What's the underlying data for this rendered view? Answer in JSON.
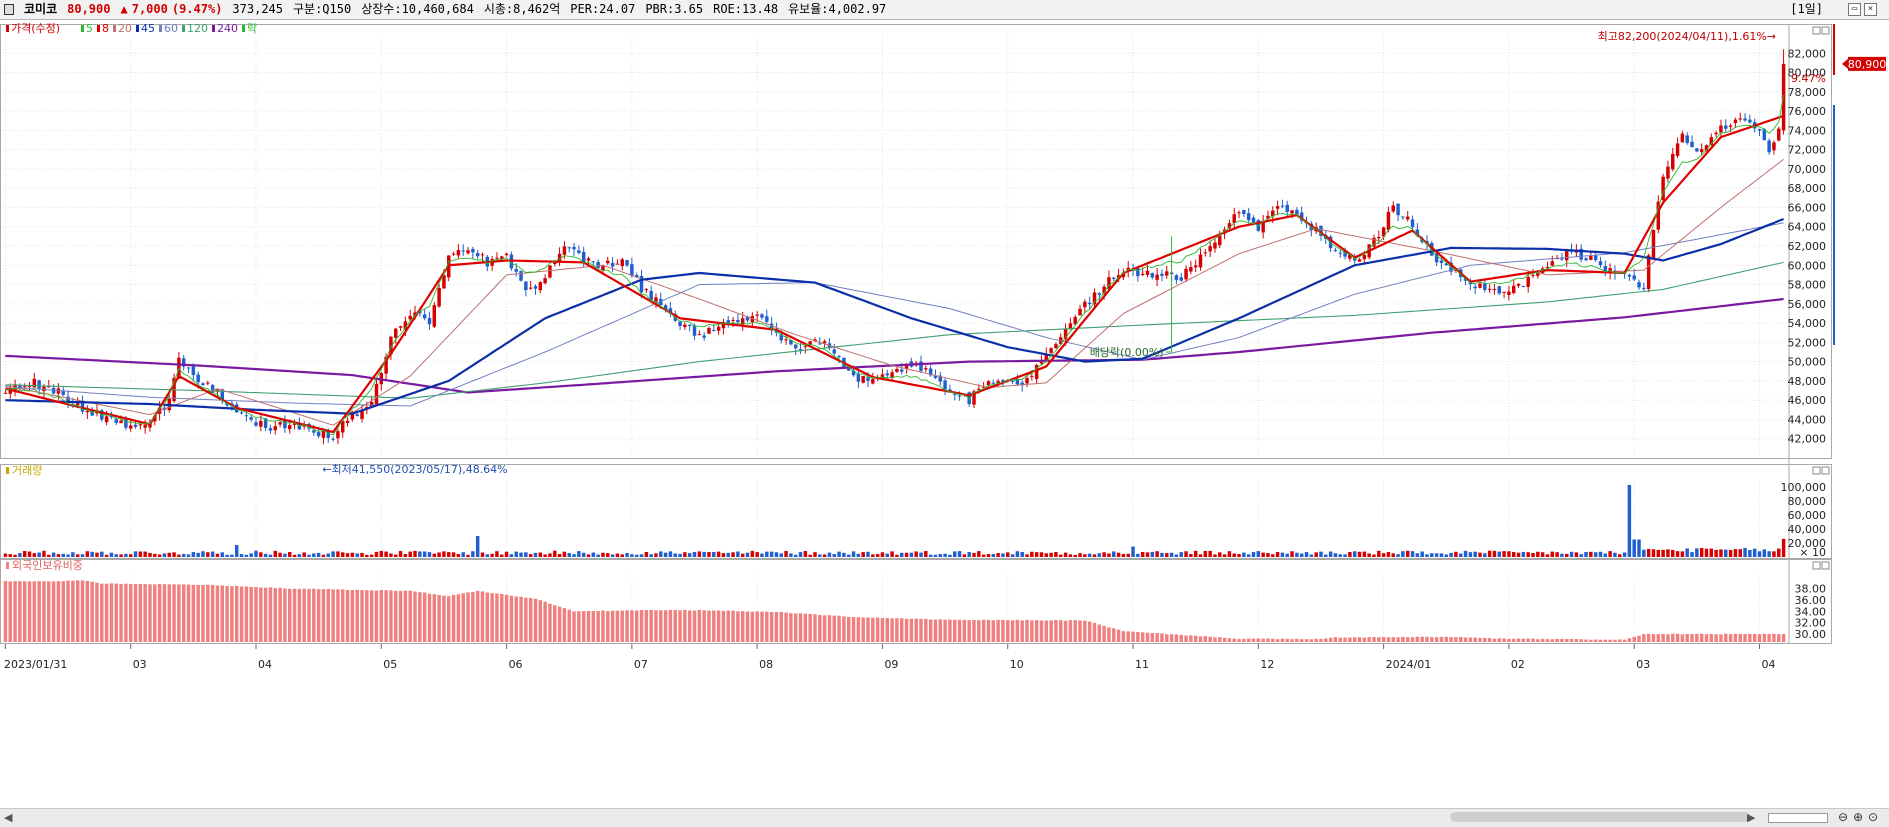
{
  "header": {
    "stock_name": "코미코",
    "price": "80,900",
    "change_arrow": "▲",
    "change": "7,000",
    "change_pct": "(9.47%)",
    "volume": "373,245",
    "market": "구분:Q150",
    "listed_shares": "상장수:10,460,684",
    "market_cap": "시총:8,462억",
    "per": "PER:24.07",
    "pbr": "PBR:3.65",
    "roe": "ROE:13.48",
    "liquidity": "유보율:4,002.97",
    "period": "[1일]"
  },
  "colors": {
    "up": "#d60000",
    "down": "#1f5fd0",
    "ma5": "#e00000",
    "ma20": "#c07070",
    "ma45": "#0a2fa8",
    "ma60": "#7080c0",
    "ma120": "#40a070",
    "ma240": "#7a1aa0",
    "foreign": "#f08080",
    "grid": "#e3e3e3"
  },
  "chart_data": [
    {
      "type": "candlestick",
      "title": "가격(수정)",
      "legend": [
        {
          "label": "가격(수정)",
          "color": "#d60000"
        },
        {
          "label": "5",
          "color": "#2bb82b"
        },
        {
          "label": "8",
          "color": "#e00000"
        },
        {
          "label": "20",
          "color": "#c07070"
        },
        {
          "label": "45",
          "color": "#0a2fa8"
        },
        {
          "label": "60",
          "color": "#7080c0"
        },
        {
          "label": "120",
          "color": "#40a070"
        },
        {
          "label": "240",
          "color": "#7a1aa0"
        },
        {
          "label": "락",
          "color": "#2bb82b"
        }
      ],
      "ylim": [
        40000,
        84000
      ],
      "y_ticks": [
        "82,000",
        "80,000",
        "78,000",
        "76,000",
        "74,000",
        "72,000",
        "70,000",
        "68,000",
        "66,000",
        "64,000",
        "62,000",
        "60,000",
        "58,000",
        "56,000",
        "54,000",
        "52,000",
        "50,000",
        "48,000",
        "46,000",
        "44,000",
        "42,000"
      ],
      "x_labels": [
        "2023/01/31",
        "03",
        "04",
        "05",
        "06",
        "07",
        "08",
        "09",
        "10",
        "11",
        "12",
        "2024/01",
        "02",
        "03",
        "04"
      ],
      "close_path": [
        [
          0,
          47000
        ],
        [
          6,
          47800
        ],
        [
          12,
          46600
        ],
        [
          16,
          44900
        ],
        [
          22,
          44200
        ],
        [
          26,
          43100
        ],
        [
          30,
          43600
        ],
        [
          34,
          46000
        ],
        [
          36,
          50000
        ],
        [
          40,
          48000
        ],
        [
          44,
          46700
        ],
        [
          48,
          45000
        ],
        [
          52,
          43600
        ],
        [
          56,
          43400
        ],
        [
          60,
          43600
        ],
        [
          64,
          42800
        ],
        [
          68,
          42400
        ],
        [
          72,
          44500
        ],
        [
          76,
          45600
        ],
        [
          80,
          52500
        ],
        [
          84,
          55000
        ],
        [
          88,
          54300
        ],
        [
          92,
          61000
        ],
        [
          96,
          61500
        ],
        [
          100,
          60300
        ],
        [
          104,
          61000
        ],
        [
          108,
          57000
        ],
        [
          112,
          59000
        ],
        [
          116,
          62000
        ],
        [
          120,
          60500
        ],
        [
          124,
          59800
        ],
        [
          128,
          60800
        ],
        [
          132,
          57600
        ],
        [
          136,
          56000
        ],
        [
          140,
          54000
        ],
        [
          144,
          52800
        ],
        [
          148,
          53600
        ],
        [
          152,
          54000
        ],
        [
          156,
          55000
        ],
        [
          160,
          53000
        ],
        [
          164,
          51500
        ],
        [
          168,
          52400
        ],
        [
          172,
          50800
        ],
        [
          176,
          48300
        ],
        [
          180,
          48000
        ],
        [
          184,
          48500
        ],
        [
          188,
          49800
        ],
        [
          192,
          48600
        ],
        [
          196,
          47200
        ],
        [
          200,
          46000
        ],
        [
          204,
          48200
        ],
        [
          208,
          47800
        ],
        [
          212,
          48000
        ],
        [
          216,
          51000
        ],
        [
          220,
          53500
        ],
        [
          224,
          56000
        ],
        [
          228,
          58000
        ],
        [
          232,
          59500
        ],
        [
          236,
          59000
        ],
        [
          240,
          59200
        ],
        [
          244,
          58600
        ],
        [
          248,
          61000
        ],
        [
          252,
          63000
        ],
        [
          256,
          65500
        ],
        [
          260,
          64000
        ],
        [
          264,
          66500
        ],
        [
          268,
          65000
        ],
        [
          272,
          63500
        ],
        [
          276,
          61800
        ],
        [
          280,
          60500
        ],
        [
          284,
          62500
        ],
        [
          288,
          66000
        ],
        [
          292,
          64200
        ],
        [
          296,
          61000
        ],
        [
          300,
          59500
        ],
        [
          304,
          58000
        ],
        [
          308,
          57800
        ],
        [
          312,
          57200
        ],
        [
          316,
          58600
        ],
        [
          320,
          59800
        ],
        [
          324,
          61400
        ],
        [
          328,
          60800
        ],
        [
          332,
          59800
        ],
        [
          336,
          59200
        ],
        [
          340,
          57800
        ],
        [
          344,
          69000
        ],
        [
          348,
          73500
        ],
        [
          352,
          71800
        ],
        [
          356,
          74500
        ],
        [
          360,
          74800
        ],
        [
          364,
          74200
        ],
        [
          366,
          71600
        ],
        [
          368,
          73900
        ],
        [
          369,
          80900
        ]
      ],
      "num_bars": 370,
      "ma5": [
        [
          0,
          47200
        ],
        [
          16,
          45200
        ],
        [
          30,
          43500
        ],
        [
          36,
          48500
        ],
        [
          48,
          45200
        ],
        [
          68,
          42700
        ],
        [
          80,
          50800
        ],
        [
          92,
          60000
        ],
        [
          104,
          60500
        ],
        [
          120,
          60300
        ],
        [
          140,
          54500
        ],
        [
          160,
          53300
        ],
        [
          180,
          48400
        ],
        [
          200,
          46500
        ],
        [
          216,
          49500
        ],
        [
          232,
          59200
        ],
        [
          256,
          64000
        ],
        [
          268,
          65200
        ],
        [
          280,
          60800
        ],
        [
          292,
          63600
        ],
        [
          304,
          58300
        ],
        [
          320,
          59500
        ],
        [
          336,
          59200
        ],
        [
          344,
          66500
        ],
        [
          356,
          73300
        ],
        [
          369,
          75500
        ]
      ],
      "ma20": [
        [
          0,
          47500
        ],
        [
          30,
          44500
        ],
        [
          44,
          47200
        ],
        [
          68,
          43400
        ],
        [
          84,
          48500
        ],
        [
          104,
          59000
        ],
        [
          124,
          60000
        ],
        [
          144,
          56500
        ],
        [
          164,
          52800
        ],
        [
          184,
          49600
        ],
        [
          204,
          47300
        ],
        [
          216,
          47800
        ],
        [
          232,
          55000
        ],
        [
          256,
          61200
        ],
        [
          272,
          63800
        ],
        [
          296,
          61500
        ],
        [
          320,
          59000
        ],
        [
          340,
          59500
        ],
        [
          356,
          66000
        ],
        [
          369,
          71000
        ]
      ],
      "ma45": [
        [
          0,
          46000
        ],
        [
          30,
          45600
        ],
        [
          52,
          45000
        ],
        [
          72,
          44600
        ],
        [
          92,
          48000
        ],
        [
          112,
          54500
        ],
        [
          132,
          58500
        ],
        [
          144,
          59200
        ],
        [
          168,
          58200
        ],
        [
          188,
          54500
        ],
        [
          208,
          51500
        ],
        [
          224,
          50000
        ],
        [
          236,
          50300
        ],
        [
          256,
          54500
        ],
        [
          280,
          60000
        ],
        [
          300,
          61800
        ],
        [
          320,
          61700
        ],
        [
          336,
          61200
        ],
        [
          344,
          60500
        ],
        [
          356,
          62200
        ],
        [
          369,
          64800
        ]
      ],
      "ma60": [
        [
          0,
          47400
        ],
        [
          30,
          46300
        ],
        [
          60,
          45700
        ],
        [
          84,
          45400
        ],
        [
          112,
          51000
        ],
        [
          144,
          58000
        ],
        [
          168,
          58200
        ],
        [
          196,
          55500
        ],
        [
          216,
          52500
        ],
        [
          236,
          50200
        ],
        [
          256,
          52500
        ],
        [
          280,
          57000
        ],
        [
          304,
          60000
        ],
        [
          336,
          61300
        ],
        [
          369,
          64400
        ]
      ],
      "ma120": [
        [
          0,
          47600
        ],
        [
          40,
          47000
        ],
        [
          84,
          46200
        ],
        [
          112,
          47800
        ],
        [
          144,
          50000
        ],
        [
          196,
          52800
        ],
        [
          236,
          53800
        ],
        [
          280,
          54800
        ],
        [
          320,
          56200
        ],
        [
          344,
          57500
        ],
        [
          369,
          60300
        ]
      ],
      "ma240": [
        [
          0,
          50600
        ],
        [
          40,
          49600
        ],
        [
          72,
          48600
        ],
        [
          96,
          46800
        ],
        [
          120,
          47600
        ],
        [
          160,
          49000
        ],
        [
          200,
          50000
        ],
        [
          236,
          50200
        ],
        [
          256,
          51000
        ],
        [
          296,
          53000
        ],
        [
          336,
          54600
        ],
        [
          369,
          56500
        ]
      ],
      "annotations": {
        "high": "최고82,200(2024/04/11),1.61%→",
        "low": "←최저41,550(2023/05/17),48.64%",
        "dividend": "배당락(0.00%)",
        "price_tag": "80,900",
        "pct_tag": "9.47%"
      }
    },
    {
      "type": "bar",
      "title": "거래량",
      "ylim": [
        0,
        110000
      ],
      "y_ticks": [
        "100,000",
        "80,000",
        "60,000",
        "40,000",
        "20,000"
      ],
      "unit": "× 10",
      "spikes": [
        [
          48,
          17000
        ],
        [
          98,
          30000
        ],
        [
          234,
          15000
        ],
        [
          337,
          103000
        ],
        [
          338,
          25000
        ],
        [
          339,
          25000
        ],
        [
          369,
          26000
        ]
      ]
    },
    {
      "type": "bar",
      "title": "외국인보유비중",
      "ylim": [
        28.6,
        40.4
      ],
      "y_ticks": [
        "38.00",
        "36.00",
        "34.00",
        "32.00",
        "30.00"
      ],
      "path": [
        [
          0,
          39.3
        ],
        [
          10,
          39.3
        ],
        [
          16,
          39.5
        ],
        [
          20,
          38.9
        ],
        [
          40,
          38.7
        ],
        [
          60,
          38.0
        ],
        [
          84,
          37.6
        ],
        [
          92,
          36.7
        ],
        [
          98,
          37.6
        ],
        [
          110,
          36.2
        ],
        [
          118,
          34.0
        ],
        [
          132,
          34.2
        ],
        [
          144,
          34.2
        ],
        [
          160,
          33.9
        ],
        [
          176,
          33.0
        ],
        [
          196,
          32.5
        ],
        [
          224,
          32.4
        ],
        [
          232,
          30.5
        ],
        [
          256,
          29.2
        ],
        [
          272,
          29.1
        ],
        [
          276,
          29.4
        ],
        [
          300,
          29.5
        ],
        [
          310,
          29.2
        ],
        [
          336,
          29.0
        ],
        [
          340,
          30.0
        ],
        [
          369,
          30.0
        ]
      ]
    }
  ]
}
